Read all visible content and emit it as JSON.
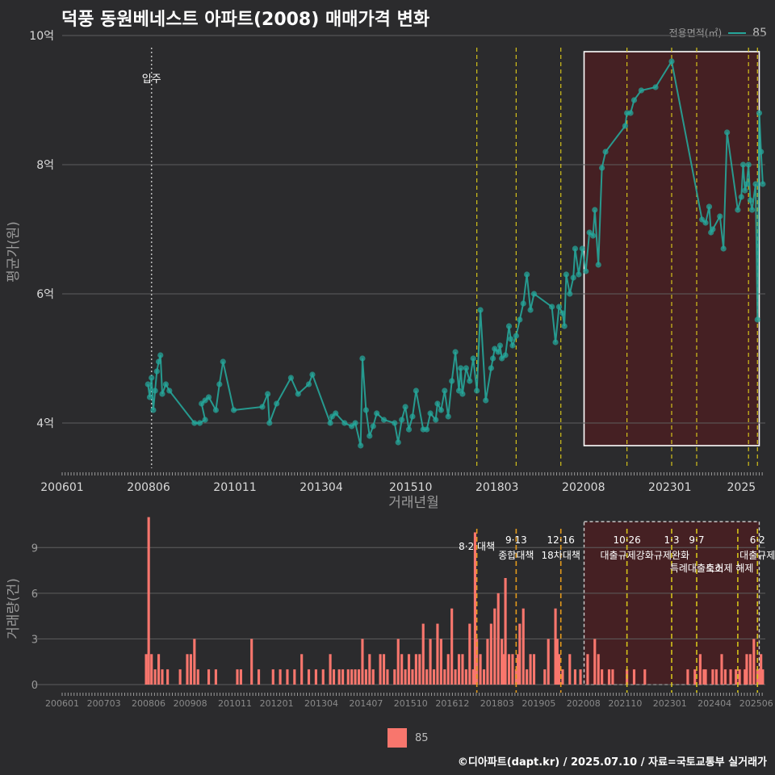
{
  "title": "덕풍 동원베네스트 아파트(2008) 매매가격 변화",
  "legend_top": {
    "title": "전용면적(㎡)",
    "label": "85"
  },
  "legend_bottom": {
    "label": "85"
  },
  "footer": "©디아파트(dapt.kr) / 2025.07.10 / 자료=국토교통부 실거래가",
  "colors": {
    "line": "#26a69a",
    "bar": "#f8766d",
    "policy": "#d4c21a",
    "highlight": "#4a1f22"
  },
  "chart_data": [
    {
      "type": "line",
      "title": "덕풍 동원베네스트 아파트(2008) 매매가격 변화",
      "xlabel": "거래년월",
      "ylabel": "평균가(원)",
      "x_ticks": [
        "200601",
        "200806",
        "201011",
        "201304",
        "201510",
        "201803",
        "202008",
        "202301",
        "2025"
      ],
      "y_ticks": [
        "4억",
        "6억",
        "8억",
        "10억"
      ],
      "ylim": [
        3.3,
        10.0
      ],
      "move_in_label": "입주",
      "move_in_x": 2008.5,
      "policy_x": [
        2017.6,
        2018.7,
        2019.95,
        2021.8,
        2023.05,
        2023.75,
        2025.2,
        2025.45
      ],
      "highlight_range": [
        2020.6,
        2025.5
      ],
      "series": [
        {
          "name": "85",
          "points": [
            [
              2008.4,
              4.6
            ],
            [
              2008.45,
              4.4
            ],
            [
              2008.5,
              4.7
            ],
            [
              2008.55,
              4.2
            ],
            [
              2008.6,
              4.5
            ],
            [
              2008.65,
              4.8
            ],
            [
              2008.7,
              4.95
            ],
            [
              2008.75,
              5.05
            ],
            [
              2008.8,
              4.45
            ],
            [
              2008.9,
              4.6
            ],
            [
              2009.0,
              4.5
            ],
            [
              2009.7,
              4.0
            ],
            [
              2009.85,
              4.0
            ],
            [
              2010.0,
              4.05
            ],
            [
              2009.9,
              4.3
            ],
            [
              2010.0,
              4.35
            ],
            [
              2010.1,
              4.4
            ],
            [
              2010.3,
              4.2
            ],
            [
              2010.4,
              4.6
            ],
            [
              2010.5,
              4.95
            ],
            [
              2010.8,
              4.2
            ],
            [
              2011.6,
              4.25
            ],
            [
              2011.75,
              4.45
            ],
            [
              2011.8,
              4.0
            ],
            [
              2012.0,
              4.3
            ],
            [
              2012.4,
              4.7
            ],
            [
              2012.6,
              4.45
            ],
            [
              2012.9,
              4.6
            ],
            [
              2013.0,
              4.75
            ],
            [
              2013.5,
              4.0
            ],
            [
              2013.55,
              4.1
            ],
            [
              2013.65,
              4.15
            ],
            [
              2013.9,
              4.0
            ],
            [
              2014.1,
              3.95
            ],
            [
              2014.2,
              4.0
            ],
            [
              2014.35,
              3.65
            ],
            [
              2014.4,
              5.0
            ],
            [
              2014.5,
              4.2
            ],
            [
              2014.6,
              3.8
            ],
            [
              2014.7,
              3.95
            ],
            [
              2014.8,
              4.15
            ],
            [
              2015.0,
              4.05
            ],
            [
              2015.3,
              4.0
            ],
            [
              2015.4,
              3.7
            ],
            [
              2015.5,
              4.05
            ],
            [
              2015.6,
              4.25
            ],
            [
              2015.7,
              3.9
            ],
            [
              2015.8,
              4.1
            ],
            [
              2015.9,
              4.5
            ],
            [
              2016.1,
              3.9
            ],
            [
              2016.2,
              3.9
            ],
            [
              2016.3,
              4.15
            ],
            [
              2016.45,
              4.05
            ],
            [
              2016.5,
              4.3
            ],
            [
              2016.6,
              4.2
            ],
            [
              2016.7,
              4.5
            ],
            [
              2016.8,
              4.1
            ],
            [
              2016.9,
              4.65
            ],
            [
              2017.0,
              5.1
            ],
            [
              2017.1,
              4.5
            ],
            [
              2017.15,
              4.85
            ],
            [
              2017.2,
              4.45
            ],
            [
              2017.3,
              4.85
            ],
            [
              2017.4,
              4.65
            ],
            [
              2017.5,
              5.0
            ],
            [
              2017.6,
              4.5
            ],
            [
              2017.7,
              5.75
            ],
            [
              2017.85,
              4.35
            ],
            [
              2018.0,
              4.85
            ],
            [
              2018.05,
              5.0
            ],
            [
              2018.1,
              5.15
            ],
            [
              2018.2,
              5.1
            ],
            [
              2018.25,
              5.2
            ],
            [
              2018.3,
              5.0
            ],
            [
              2018.4,
              5.05
            ],
            [
              2018.5,
              5.5
            ],
            [
              2018.55,
              5.3
            ],
            [
              2018.6,
              5.2
            ],
            [
              2018.7,
              5.35
            ],
            [
              2018.8,
              5.6
            ],
            [
              2018.9,
              5.85
            ],
            [
              2019.0,
              6.3
            ],
            [
              2019.1,
              5.75
            ],
            [
              2019.2,
              6.0
            ],
            [
              2019.7,
              5.8
            ],
            [
              2019.8,
              5.25
            ],
            [
              2019.9,
              5.8
            ],
            [
              2020.0,
              5.7
            ],
            [
              2020.05,
              5.5
            ],
            [
              2020.1,
              6.3
            ],
            [
              2020.2,
              6.0
            ],
            [
              2020.3,
              6.25
            ],
            [
              2020.35,
              6.7
            ],
            [
              2020.45,
              6.3
            ],
            [
              2020.55,
              6.7
            ],
            [
              2020.65,
              6.35
            ],
            [
              2020.75,
              6.95
            ],
            [
              2020.85,
              6.9
            ],
            [
              2020.9,
              7.3
            ],
            [
              2021.0,
              6.45
            ],
            [
              2021.1,
              7.95
            ],
            [
              2021.2,
              8.2
            ],
            [
              2021.75,
              8.6
            ],
            [
              2021.8,
              8.8
            ],
            [
              2021.9,
              8.8
            ],
            [
              2022.0,
              9.0
            ],
            [
              2022.2,
              9.15
            ],
            [
              2022.6,
              9.2
            ],
            [
              2023.05,
              9.6
            ],
            [
              2023.9,
              7.15
            ],
            [
              2024.0,
              7.1
            ],
            [
              2024.1,
              7.35
            ],
            [
              2024.15,
              6.95
            ],
            [
              2024.2,
              7.0
            ],
            [
              2024.4,
              7.2
            ],
            [
              2024.5,
              6.7
            ],
            [
              2024.6,
              8.5
            ],
            [
              2024.9,
              7.3
            ],
            [
              2025.0,
              7.5
            ],
            [
              2025.05,
              8.0
            ],
            [
              2025.1,
              7.6
            ],
            [
              2025.15,
              7.7
            ],
            [
              2025.2,
              8.0
            ],
            [
              2025.25,
              7.45
            ],
            [
              2025.3,
              7.3
            ],
            [
              2025.4,
              7.7
            ],
            [
              2025.45,
              5.6
            ],
            [
              2025.5,
              8.8
            ],
            [
              2025.55,
              8.2
            ],
            [
              2025.6,
              7.7
            ]
          ]
        }
      ]
    },
    {
      "type": "bar",
      "ylabel": "거래량(건)",
      "y_ticks": [
        "0",
        "3",
        "6",
        "9"
      ],
      "ylim": [
        0,
        10.5
      ],
      "x_ticks": [
        "200601",
        "200703",
        "200806",
        "200908",
        "201011",
        "201201",
        "201304",
        "201407",
        "201510",
        "201612",
        "201803",
        "201905",
        "202008",
        "202110",
        "202301",
        "202404",
        "202506"
      ],
      "policy_labels": [
        {
          "date": "8·2 대책",
          "x": 2017.6,
          "line2": ""
        },
        {
          "date": "9·13",
          "x": 2018.7,
          "line2": "종합대책"
        },
        {
          "date": "12·16",
          "x": 2019.95,
          "line2": "18차대책"
        },
        {
          "date": "10·26",
          "x": 2021.8,
          "line2": "대출규제강화"
        },
        {
          "date": "1·3",
          "x": 2023.05,
          "line2": "규제완화"
        },
        {
          "date": "9·7",
          "x": 2023.75,
          "line2": "특례대출축소"
        },
        {
          "date": "",
          "x": 2024.9,
          "line2": "토허제 해제"
        },
        {
          "date": "6·2",
          "x": 2025.45,
          "line2": "대출규제"
        }
      ],
      "series": [
        {
          "name": "85",
          "bars": [
            [
              2008.35,
              2
            ],
            [
              2008.42,
              11
            ],
            [
              2008.5,
              2
            ],
            [
              2008.6,
              1
            ],
            [
              2008.7,
              2
            ],
            [
              2008.8,
              1
            ],
            [
              2008.95,
              1
            ],
            [
              2009.3,
              1
            ],
            [
              2009.5,
              2
            ],
            [
              2009.6,
              2
            ],
            [
              2009.7,
              3
            ],
            [
              2009.8,
              1
            ],
            [
              2010.1,
              1
            ],
            [
              2010.3,
              1
            ],
            [
              2010.9,
              1
            ],
            [
              2011.0,
              1
            ],
            [
              2011.3,
              3
            ],
            [
              2011.5,
              1
            ],
            [
              2011.9,
              1
            ],
            [
              2012.1,
              1
            ],
            [
              2012.3,
              1
            ],
            [
              2012.5,
              1
            ],
            [
              2012.7,
              2
            ],
            [
              2012.9,
              1
            ],
            [
              2013.1,
              1
            ],
            [
              2013.3,
              1
            ],
            [
              2013.5,
              2
            ],
            [
              2013.6,
              1
            ],
            [
              2013.75,
              1
            ],
            [
              2013.85,
              1
            ],
            [
              2014.0,
              1
            ],
            [
              2014.1,
              1
            ],
            [
              2014.2,
              1
            ],
            [
              2014.3,
              1
            ],
            [
              2014.4,
              3
            ],
            [
              2014.5,
              1
            ],
            [
              2014.6,
              2
            ],
            [
              2014.7,
              1
            ],
            [
              2014.9,
              2
            ],
            [
              2015.0,
              2
            ],
            [
              2015.1,
              1
            ],
            [
              2015.3,
              1
            ],
            [
              2015.4,
              3
            ],
            [
              2015.5,
              2
            ],
            [
              2015.6,
              1
            ],
            [
              2015.7,
              2
            ],
            [
              2015.8,
              1
            ],
            [
              2015.9,
              2
            ],
            [
              2016.0,
              2
            ],
            [
              2016.1,
              4
            ],
            [
              2016.2,
              1
            ],
            [
              2016.3,
              3
            ],
            [
              2016.4,
              1
            ],
            [
              2016.5,
              4
            ],
            [
              2016.6,
              3
            ],
            [
              2016.7,
              1
            ],
            [
              2016.8,
              2
            ],
            [
              2016.9,
              5
            ],
            [
              2017.0,
              1
            ],
            [
              2017.1,
              2
            ],
            [
              2017.2,
              2
            ],
            [
              2017.3,
              1
            ],
            [
              2017.4,
              4
            ],
            [
              2017.5,
              1
            ],
            [
              2017.55,
              10
            ],
            [
              2017.6,
              3
            ],
            [
              2017.7,
              2
            ],
            [
              2017.8,
              1
            ],
            [
              2017.9,
              3
            ],
            [
              2018.0,
              4
            ],
            [
              2018.1,
              5
            ],
            [
              2018.2,
              6
            ],
            [
              2018.3,
              3
            ],
            [
              2018.35,
              2
            ],
            [
              2018.4,
              7
            ],
            [
              2018.5,
              2
            ],
            [
              2018.6,
              2
            ],
            [
              2018.7,
              1
            ],
            [
              2018.75,
              2
            ],
            [
              2018.8,
              4
            ],
            [
              2018.9,
              5
            ],
            [
              2019.0,
              1
            ],
            [
              2019.1,
              2
            ],
            [
              2019.2,
              2
            ],
            [
              2019.5,
              1
            ],
            [
              2019.6,
              3
            ],
            [
              2019.8,
              5
            ],
            [
              2019.85,
              3
            ],
            [
              2019.9,
              2
            ],
            [
              2020.0,
              1
            ],
            [
              2020.2,
              2
            ],
            [
              2020.35,
              1
            ],
            [
              2020.5,
              1
            ],
            [
              2020.7,
              2
            ],
            [
              2020.9,
              3
            ],
            [
              2021.0,
              2
            ],
            [
              2021.1,
              1
            ],
            [
              2021.3,
              1
            ],
            [
              2021.4,
              1
            ],
            [
              2021.8,
              1
            ],
            [
              2022.0,
              1
            ],
            [
              2022.3,
              1
            ],
            [
              2023.5,
              1
            ],
            [
              2023.7,
              1
            ],
            [
              2023.85,
              2
            ],
            [
              2023.95,
              1
            ],
            [
              2024.0,
              1
            ],
            [
              2024.2,
              1
            ],
            [
              2024.3,
              1
            ],
            [
              2024.45,
              2
            ],
            [
              2024.55,
              1
            ],
            [
              2024.7,
              1
            ],
            [
              2024.85,
              1
            ],
            [
              2024.95,
              1
            ],
            [
              2025.1,
              1
            ],
            [
              2025.15,
              2
            ],
            [
              2025.25,
              2
            ],
            [
              2025.35,
              3
            ],
            [
              2025.45,
              1
            ],
            [
              2025.5,
              1
            ],
            [
              2025.55,
              2
            ],
            [
              2025.6,
              1
            ]
          ]
        }
      ]
    }
  ]
}
